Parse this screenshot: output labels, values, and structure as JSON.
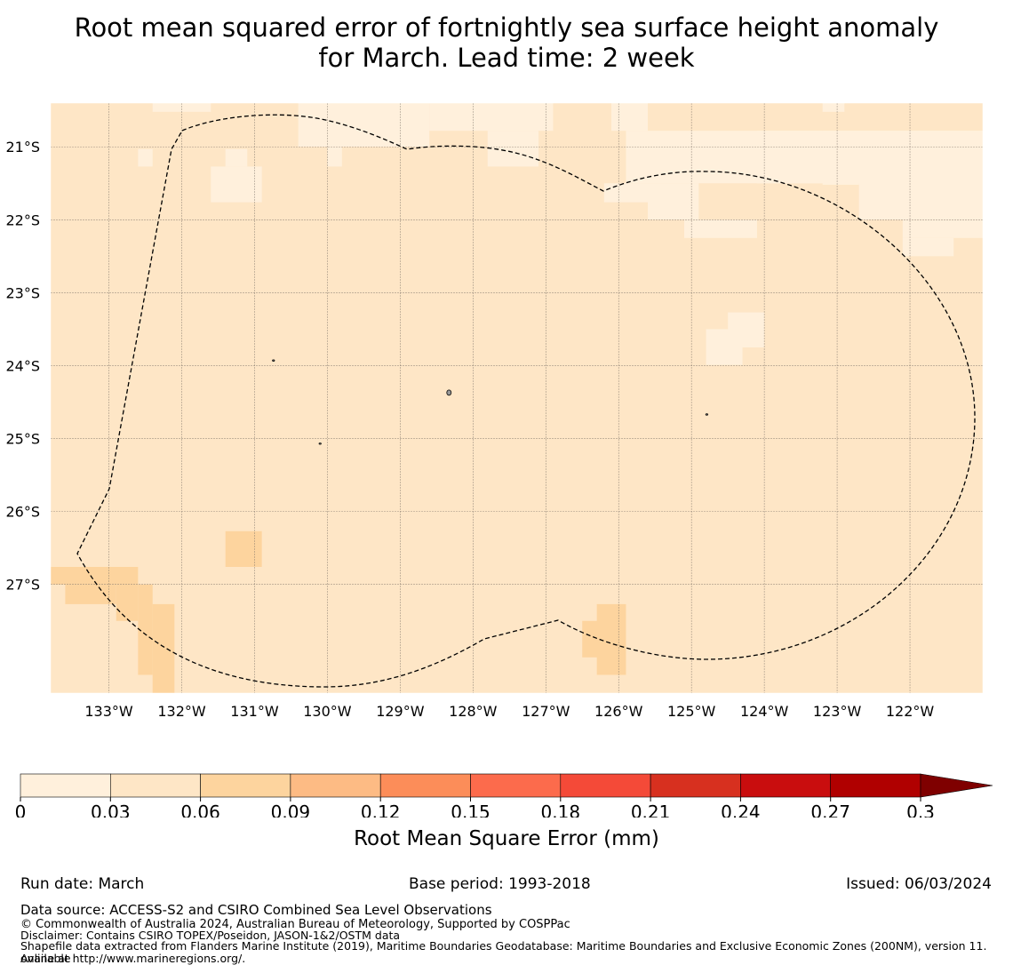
{
  "title": {
    "line1": "Root mean squared error of fortnightly sea surface height anomaly",
    "line2": "for March. Lead time: 2 week"
  },
  "map": {
    "lat_labels": [
      "21°S",
      "22°S",
      "23°S",
      "24°S",
      "25°S",
      "26°S",
      "27°S"
    ],
    "lon_labels": [
      "133°W",
      "132°W",
      "131°W",
      "130°W",
      "129°W",
      "128°W",
      "127°W",
      "126°W",
      "125°W",
      "124°W",
      "123°W",
      "122°W"
    ],
    "extent": {
      "lon_min": -133.8,
      "lon_max": -121.0,
      "lat_min": -28.49,
      "lat_max": -20.4
    },
    "background_class": 1,
    "class_regions": [
      {
        "class": 0,
        "lon": [
          -132.6,
          -132.4
        ],
        "lat": [
          -21.27,
          -21.03
        ]
      },
      {
        "class": 0,
        "lon": [
          -132.4,
          -131.6
        ],
        "lat": [
          -20.52,
          -20.4
        ]
      },
      {
        "class": 0,
        "lon": [
          -131.6,
          -130.9
        ],
        "lat": [
          -21.76,
          -21.27
        ]
      },
      {
        "class": 0,
        "lon": [
          -131.4,
          -131.1
        ],
        "lat": [
          -21.27,
          -21.03
        ]
      },
      {
        "class": 0,
        "lon": [
          -130.4,
          -128.6
        ],
        "lat": [
          -21.0,
          -20.4
        ]
      },
      {
        "class": 0,
        "lon": [
          -130.0,
          -129.8
        ],
        "lat": [
          -21.27,
          -21.0
        ]
      },
      {
        "class": 0,
        "lon": [
          -128.6,
          -126.9
        ],
        "lat": [
          -20.78,
          -20.4
        ]
      },
      {
        "class": 0,
        "lon": [
          -127.8,
          -127.1
        ],
        "lat": [
          -21.27,
          -20.78
        ]
      },
      {
        "class": 0,
        "lon": [
          -126.1,
          -125.6
        ],
        "lat": [
          -20.78,
          -20.4
        ]
      },
      {
        "class": 0,
        "lon": [
          -125.9,
          -121.0
        ],
        "lat": [
          -21.5,
          -20.78
        ]
      },
      {
        "class": 0,
        "lon": [
          -126.2,
          -125.6
        ],
        "lat": [
          -21.76,
          -21.5
        ]
      },
      {
        "class": 0,
        "lon": [
          -125.6,
          -124.9
        ],
        "lat": [
          -22.0,
          -21.5
        ]
      },
      {
        "class": 0,
        "lon": [
          -125.1,
          -124.1
        ],
        "lat": [
          -22.25,
          -22.0
        ]
      },
      {
        "class": 0,
        "lon": [
          -124.1,
          -123.2
        ],
        "lat": [
          -21.5,
          -20.78
        ]
      },
      {
        "class": 0,
        "lon": [
          -123.2,
          -121.0
        ],
        "lat": [
          -21.27,
          -20.78
        ]
      },
      {
        "class": 0,
        "lon": [
          -123.2,
          -122.7
        ],
        "lat": [
          -21.52,
          -21.27
        ]
      },
      {
        "class": 0,
        "lon": [
          -122.7,
          -121.0
        ],
        "lat": [
          -22.0,
          -21.27
        ]
      },
      {
        "class": 0,
        "lon": [
          -122.1,
          -121.0
        ],
        "lat": [
          -22.25,
          -22.0
        ]
      },
      {
        "class": 0,
        "lon": [
          -122.1,
          -121.4
        ],
        "lat": [
          -22.5,
          -22.25
        ]
      },
      {
        "class": 0,
        "lon": [
          -123.2,
          -122.9
        ],
        "lat": [
          -20.52,
          -20.4
        ]
      },
      {
        "class": 0,
        "lon": [
          -124.5,
          -124.0
        ],
        "lat": [
          -23.75,
          -23.27
        ]
      },
      {
        "class": 0,
        "lon": [
          -124.8,
          -124.3
        ],
        "lat": [
          -23.99,
          -23.5
        ]
      },
      {
        "class": 2,
        "lon": [
          -131.4,
          -130.9
        ],
        "lat": [
          -26.76,
          -26.27
        ]
      },
      {
        "class": 2,
        "lon": [
          -133.8,
          -132.6
        ],
        "lat": [
          -27.0,
          -26.76
        ]
      },
      {
        "class": 2,
        "lon": [
          -133.6,
          -132.9
        ],
        "lat": [
          -27.27,
          -27.0
        ]
      },
      {
        "class": 2,
        "lon": [
          -132.9,
          -132.6
        ],
        "lat": [
          -27.5,
          -27.0
        ]
      },
      {
        "class": 2,
        "lon": [
          -132.6,
          -132.4
        ],
        "lat": [
          -28.24,
          -27.0
        ]
      },
      {
        "class": 2,
        "lon": [
          -132.4,
          -132.1
        ],
        "lat": [
          -28.49,
          -27.27
        ]
      },
      {
        "class": 2,
        "lon": [
          -126.5,
          -126.1
        ],
        "lat": [
          -28.0,
          -27.5
        ]
      },
      {
        "class": 2,
        "lon": [
          -126.3,
          -125.9
        ],
        "lat": [
          -28.24,
          -27.27
        ]
      }
    ],
    "islands": [
      {
        "lon": -128.33,
        "lat": -24.37
      },
      {
        "lon": -130.74,
        "lat": -23.93
      },
      {
        "lon": -130.1,
        "lat": -25.07
      },
      {
        "lon": -124.79,
        "lat": -24.67
      }
    ]
  },
  "colorbar": {
    "ticks": [
      "0",
      "0.03",
      "0.06",
      "0.09",
      "0.12",
      "0.15",
      "0.18",
      "0.21",
      "0.24",
      "0.27",
      "0.3"
    ],
    "colors": [
      "#fff0dc",
      "#fee6c6",
      "#fdd49e",
      "#fdbb84",
      "#fc8d59",
      "#fc6b4c",
      "#f44a38",
      "#d7301f",
      "#c90d0e",
      "#b00000",
      "#7f0000"
    ],
    "label": "Root Mean Square Error (mm)"
  },
  "footer": {
    "run_date": "Run date: March",
    "base_period": "Base period: 1993-2018",
    "issued": "Issued: 06/03/2024",
    "data_source": "Data source: ACCESS-S2 and CSIRO Combined Sea Level Observations",
    "copyright": "© Commonwealth of Australia 2024, Australian Bureau of Meteorology, Supported by COSPPac",
    "disclaimer": "Disclaimer: Contains CSIRO TOPEX/Poseidon, JASON-1&2/OSTM data",
    "shapefile_1": "Shapefile data extracted from Flanders Marine Institute (2019), Maritime Boundaries Geodatabase: Maritime Boundaries and Exclusive Economic Zones (200NM), version 11. Available",
    "shapefile_2": "online at http://www.marineregions.org/."
  }
}
